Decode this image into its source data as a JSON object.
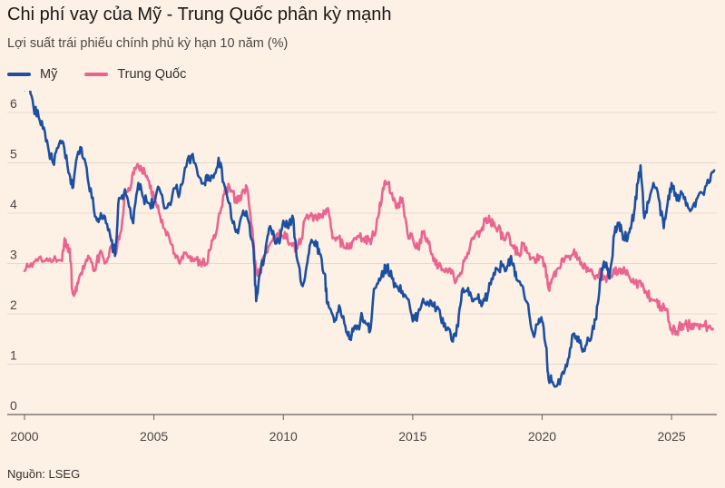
{
  "title": "Chi phí vay của Mỹ - Trung Quốc phân kỳ mạnh",
  "subtitle": "Lợi suất trái phiếu chính phủ kỳ hạn 10 năm (%)",
  "source": "Nguồn: LSEG",
  "chart_data": {
    "type": "line",
    "title": "Chi phí vay của Mỹ - Trung Quốc phân kỳ mạnh",
    "ylabel": "Lợi suất trái phiếu chính phủ kỳ hạn 10 năm (%)",
    "xlim": [
      2000,
      2026.75
    ],
    "ylim": [
      0,
      6
    ],
    "y_ticks": [
      "0",
      "1",
      "2",
      "3",
      "4",
      "5",
      "6"
    ],
    "x_ticks": [
      "2000",
      "2005",
      "2010",
      "2015",
      "2020",
      "2025"
    ],
    "grid": "horizontal",
    "legend_position": "top-left",
    "series": [
      {
        "name": "Mỹ",
        "color": "#1d4fa1",
        "points": [
          [
            2000.0,
            6.45
          ],
          [
            2000.15,
            6.6
          ],
          [
            2000.35,
            6.1
          ],
          [
            2000.55,
            5.9
          ],
          [
            2000.75,
            5.7
          ],
          [
            2000.95,
            5.2
          ],
          [
            2001.1,
            5.0
          ],
          [
            2001.3,
            5.3
          ],
          [
            2001.5,
            5.4
          ],
          [
            2001.7,
            4.8
          ],
          [
            2001.85,
            4.5
          ],
          [
            2002.0,
            5.05
          ],
          [
            2002.2,
            5.3
          ],
          [
            2002.4,
            4.9
          ],
          [
            2002.6,
            4.3
          ],
          [
            2002.8,
            3.85
          ],
          [
            2002.95,
            4.0
          ],
          [
            2003.15,
            3.8
          ],
          [
            2003.35,
            3.45
          ],
          [
            2003.5,
            3.15
          ],
          [
            2003.65,
            4.3
          ],
          [
            2003.85,
            4.4
          ],
          [
            2004.0,
            4.25
          ],
          [
            2004.2,
            3.8
          ],
          [
            2004.4,
            4.6
          ],
          [
            2004.6,
            4.3
          ],
          [
            2004.8,
            4.2
          ],
          [
            2005.0,
            4.2
          ],
          [
            2005.2,
            4.5
          ],
          [
            2005.4,
            4.1
          ],
          [
            2005.6,
            4.2
          ],
          [
            2005.8,
            4.5
          ],
          [
            2006.0,
            4.4
          ],
          [
            2006.2,
            4.9
          ],
          [
            2006.45,
            5.15
          ],
          [
            2006.7,
            4.75
          ],
          [
            2006.95,
            4.6
          ],
          [
            2007.1,
            4.75
          ],
          [
            2007.3,
            4.7
          ],
          [
            2007.5,
            5.1
          ],
          [
            2007.7,
            4.6
          ],
          [
            2007.9,
            4.2
          ],
          [
            2008.05,
            3.8
          ],
          [
            2008.25,
            3.6
          ],
          [
            2008.45,
            4.05
          ],
          [
            2008.65,
            3.85
          ],
          [
            2008.85,
            3.3
          ],
          [
            2008.95,
            2.25
          ],
          [
            2009.1,
            2.8
          ],
          [
            2009.3,
            3.2
          ],
          [
            2009.45,
            3.7
          ],
          [
            2009.65,
            3.5
          ],
          [
            2009.85,
            3.4
          ],
          [
            2010.0,
            3.85
          ],
          [
            2010.2,
            3.7
          ],
          [
            2010.35,
            3.95
          ],
          [
            2010.55,
            3.05
          ],
          [
            2010.75,
            2.55
          ],
          [
            2010.9,
            2.95
          ],
          [
            2011.05,
            3.4
          ],
          [
            2011.25,
            3.45
          ],
          [
            2011.4,
            3.2
          ],
          [
            2011.6,
            2.8
          ],
          [
            2011.7,
            2.2
          ],
          [
            2011.85,
            2.05
          ],
          [
            2012.0,
            1.9
          ],
          [
            2012.2,
            2.1
          ],
          [
            2012.4,
            1.75
          ],
          [
            2012.55,
            1.5
          ],
          [
            2012.7,
            1.65
          ],
          [
            2012.9,
            1.75
          ],
          [
            2013.05,
            1.95
          ],
          [
            2013.2,
            1.8
          ],
          [
            2013.35,
            1.65
          ],
          [
            2013.5,
            2.5
          ],
          [
            2013.7,
            2.7
          ],
          [
            2013.9,
            2.85
          ],
          [
            2014.0,
            2.95
          ],
          [
            2014.2,
            2.7
          ],
          [
            2014.4,
            2.55
          ],
          [
            2014.6,
            2.45
          ],
          [
            2014.8,
            2.3
          ],
          [
            2015.0,
            1.85
          ],
          [
            2015.2,
            2.0
          ],
          [
            2015.4,
            2.3
          ],
          [
            2015.6,
            2.2
          ],
          [
            2015.8,
            2.15
          ],
          [
            2016.0,
            2.1
          ],
          [
            2016.2,
            1.75
          ],
          [
            2016.4,
            1.7
          ],
          [
            2016.55,
            1.45
          ],
          [
            2016.75,
            1.75
          ],
          [
            2016.9,
            2.45
          ],
          [
            2017.1,
            2.45
          ],
          [
            2017.3,
            2.25
          ],
          [
            2017.5,
            2.3
          ],
          [
            2017.7,
            2.2
          ],
          [
            2017.9,
            2.4
          ],
          [
            2018.05,
            2.7
          ],
          [
            2018.25,
            2.9
          ],
          [
            2018.45,
            2.95
          ],
          [
            2018.65,
            2.95
          ],
          [
            2018.8,
            3.15
          ],
          [
            2018.95,
            2.75
          ],
          [
            2019.1,
            2.65
          ],
          [
            2019.3,
            2.4
          ],
          [
            2019.5,
            2.0
          ],
          [
            2019.65,
            1.6
          ],
          [
            2019.85,
            1.8
          ],
          [
            2020.0,
            1.85
          ],
          [
            2020.15,
            1.35
          ],
          [
            2020.25,
            0.7
          ],
          [
            2020.4,
            0.65
          ],
          [
            2020.6,
            0.6
          ],
          [
            2020.8,
            0.85
          ],
          [
            2021.0,
            1.1
          ],
          [
            2021.2,
            1.6
          ],
          [
            2021.4,
            1.55
          ],
          [
            2021.6,
            1.3
          ],
          [
            2021.8,
            1.5
          ],
          [
            2022.0,
            1.7
          ],
          [
            2022.15,
            2.2
          ],
          [
            2022.3,
            2.9
          ],
          [
            2022.45,
            3.0
          ],
          [
            2022.6,
            2.7
          ],
          [
            2022.8,
            3.6
          ],
          [
            2022.95,
            3.8
          ],
          [
            2023.1,
            3.6
          ],
          [
            2023.25,
            3.5
          ],
          [
            2023.4,
            3.7
          ],
          [
            2023.55,
            4.0
          ],
          [
            2023.7,
            4.6
          ],
          [
            2023.8,
            4.95
          ],
          [
            2023.95,
            3.9
          ],
          [
            2024.1,
            4.2
          ],
          [
            2024.3,
            4.6
          ],
          [
            2024.5,
            4.3
          ],
          [
            2024.7,
            3.7
          ],
          [
            2024.85,
            4.2
          ],
          [
            2025.0,
            4.6
          ],
          [
            2025.2,
            4.25
          ],
          [
            2025.4,
            4.4
          ],
          [
            2025.6,
            4.2
          ],
          [
            2025.8,
            4.1
          ],
          [
            2026.0,
            4.3
          ],
          [
            2026.2,
            4.4
          ],
          [
            2026.45,
            4.6
          ],
          [
            2026.65,
            4.85
          ]
        ]
      },
      {
        "name": "Trung Quốc",
        "color": "#e9658f",
        "points": [
          [
            2000.0,
            2.85
          ],
          [
            2000.25,
            3.0
          ],
          [
            2000.5,
            3.05
          ],
          [
            2000.8,
            3.05
          ],
          [
            2001.1,
            3.05
          ],
          [
            2001.45,
            3.05
          ],
          [
            2001.55,
            3.5
          ],
          [
            2001.65,
            3.3
          ],
          [
            2001.75,
            3.3
          ],
          [
            2001.85,
            2.45
          ],
          [
            2001.95,
            2.4
          ],
          [
            2002.1,
            2.7
          ],
          [
            2002.3,
            2.9
          ],
          [
            2002.5,
            3.1
          ],
          [
            2002.7,
            2.85
          ],
          [
            2002.9,
            3.2
          ],
          [
            2003.1,
            3.0
          ],
          [
            2003.3,
            3.3
          ],
          [
            2003.5,
            3.2
          ],
          [
            2003.7,
            3.6
          ],
          [
            2003.9,
            4.4
          ],
          [
            2004.1,
            4.5
          ],
          [
            2004.25,
            4.9
          ],
          [
            2004.45,
            4.85
          ],
          [
            2004.65,
            4.8
          ],
          [
            2004.85,
            4.5
          ],
          [
            2005.0,
            4.3
          ],
          [
            2005.2,
            4.0
          ],
          [
            2005.4,
            3.7
          ],
          [
            2005.6,
            3.5
          ],
          [
            2005.8,
            3.2
          ],
          [
            2006.0,
            3.0
          ],
          [
            2006.2,
            3.2
          ],
          [
            2006.4,
            3.15
          ],
          [
            2006.6,
            3.1
          ],
          [
            2006.8,
            3.0
          ],
          [
            2007.0,
            3.0
          ],
          [
            2007.2,
            3.3
          ],
          [
            2007.4,
            3.6
          ],
          [
            2007.6,
            4.1
          ],
          [
            2007.8,
            4.5
          ],
          [
            2008.0,
            4.45
          ],
          [
            2008.2,
            4.2
          ],
          [
            2008.4,
            4.4
          ],
          [
            2008.6,
            4.5
          ],
          [
            2008.8,
            3.7
          ],
          [
            2008.95,
            2.8
          ],
          [
            2009.1,
            2.85
          ],
          [
            2009.3,
            3.2
          ],
          [
            2009.5,
            3.4
          ],
          [
            2009.7,
            3.55
          ],
          [
            2009.9,
            3.6
          ],
          [
            2010.1,
            3.5
          ],
          [
            2010.3,
            3.4
          ],
          [
            2010.5,
            3.3
          ],
          [
            2010.7,
            3.5
          ],
          [
            2010.85,
            3.9
          ],
          [
            2011.0,
            3.95
          ],
          [
            2011.2,
            3.95
          ],
          [
            2011.4,
            3.9
          ],
          [
            2011.6,
            4.0
          ],
          [
            2011.75,
            4.05
          ],
          [
            2011.9,
            3.5
          ],
          [
            2012.1,
            3.5
          ],
          [
            2012.3,
            3.4
          ],
          [
            2012.5,
            3.3
          ],
          [
            2012.7,
            3.45
          ],
          [
            2012.9,
            3.55
          ],
          [
            2013.1,
            3.5
          ],
          [
            2013.3,
            3.45
          ],
          [
            2013.5,
            3.55
          ],
          [
            2013.7,
            4.0
          ],
          [
            2013.85,
            4.5
          ],
          [
            2014.0,
            4.6
          ],
          [
            2014.2,
            4.4
          ],
          [
            2014.4,
            4.1
          ],
          [
            2014.6,
            4.3
          ],
          [
            2014.8,
            3.6
          ],
          [
            2015.0,
            3.5
          ],
          [
            2015.2,
            3.3
          ],
          [
            2015.4,
            3.6
          ],
          [
            2015.6,
            3.4
          ],
          [
            2015.8,
            3.05
          ],
          [
            2016.0,
            2.95
          ],
          [
            2016.2,
            2.85
          ],
          [
            2016.4,
            2.9
          ],
          [
            2016.6,
            2.7
          ],
          [
            2016.8,
            2.75
          ],
          [
            2017.0,
            3.05
          ],
          [
            2017.2,
            3.3
          ],
          [
            2017.4,
            3.55
          ],
          [
            2017.6,
            3.65
          ],
          [
            2017.8,
            3.85
          ],
          [
            2017.95,
            3.95
          ],
          [
            2018.1,
            3.75
          ],
          [
            2018.3,
            3.7
          ],
          [
            2018.5,
            3.5
          ],
          [
            2018.7,
            3.6
          ],
          [
            2018.9,
            3.3
          ],
          [
            2019.1,
            3.2
          ],
          [
            2019.3,
            3.4
          ],
          [
            2019.5,
            3.2
          ],
          [
            2019.7,
            3.1
          ],
          [
            2019.9,
            3.15
          ],
          [
            2020.1,
            3.0
          ],
          [
            2020.25,
            2.5
          ],
          [
            2020.4,
            2.7
          ],
          [
            2020.6,
            2.9
          ],
          [
            2020.8,
            3.1
          ],
          [
            2021.0,
            3.15
          ],
          [
            2021.2,
            3.2
          ],
          [
            2021.4,
            3.1
          ],
          [
            2021.6,
            2.9
          ],
          [
            2021.8,
            2.85
          ],
          [
            2022.0,
            2.75
          ],
          [
            2022.2,
            2.8
          ],
          [
            2022.4,
            2.75
          ],
          [
            2022.6,
            2.7
          ],
          [
            2022.8,
            2.8
          ],
          [
            2023.0,
            2.9
          ],
          [
            2023.2,
            2.85
          ],
          [
            2023.4,
            2.7
          ],
          [
            2023.6,
            2.6
          ],
          [
            2023.8,
            2.65
          ],
          [
            2024.0,
            2.45
          ],
          [
            2024.2,
            2.3
          ],
          [
            2024.4,
            2.25
          ],
          [
            2024.6,
            2.15
          ],
          [
            2024.8,
            2.1
          ],
          [
            2025.0,
            1.7
          ],
          [
            2025.2,
            1.65
          ],
          [
            2025.4,
            1.8
          ],
          [
            2025.6,
            1.75
          ],
          [
            2025.8,
            1.8
          ],
          [
            2026.0,
            1.8
          ],
          [
            2026.2,
            1.75
          ],
          [
            2026.4,
            1.75
          ],
          [
            2026.6,
            1.7
          ]
        ]
      }
    ]
  }
}
